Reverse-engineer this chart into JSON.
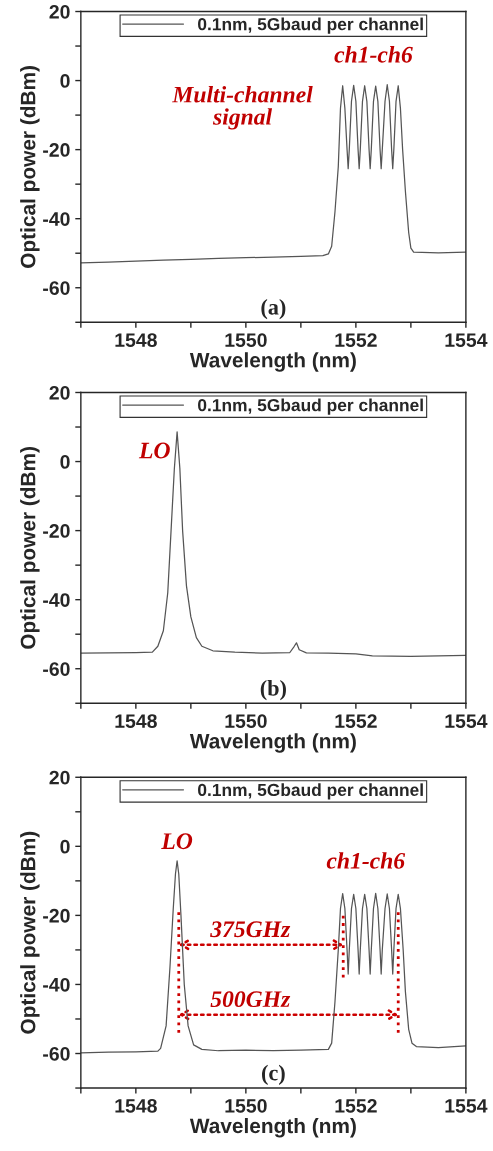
{
  "chart_data": [
    {
      "type": "line",
      "xlabel": "Wavelength (nm)",
      "ylabel": "Optical power (dBm)",
      "xlim": [
        1547,
        1554
      ],
      "ylim": [
        -70,
        20
      ],
      "xticks": [
        {
          "value": 1547,
          "label": null
        },
        1548,
        {
          "value": 1549,
          "label": null
        },
        1550,
        {
          "value": 1551,
          "label": null
        },
        1552,
        {
          "value": 1553,
          "label": null
        },
        1554
      ],
      "yticks": [
        {
          "value": -70,
          "label": null
        },
        -60,
        {
          "value": -50,
          "label": null
        },
        -40,
        {
          "value": -30,
          "label": null
        },
        -20,
        {
          "value": -10,
          "label": null
        },
        0,
        {
          "value": 10,
          "label": null
        },
        20
      ],
      "legend": "top",
      "grid": false,
      "series": [
        {
          "name": "0.1nm, 5Gbaud per channel",
          "color": "#555555",
          "x": [
            1547.0,
            1547.5,
            1548.0,
            1548.5,
            1549.0,
            1549.5,
            1550.0,
            1550.5,
            1551.0,
            1551.4,
            1551.5,
            1551.56,
            1551.62,
            1551.68,
            1551.72,
            1551.76,
            1551.8,
            1551.84,
            1551.86,
            1551.88,
            1551.92,
            1551.96,
            1552.0,
            1552.04,
            1552.06,
            1552.08,
            1552.12,
            1552.16,
            1552.2,
            1552.24,
            1552.26,
            1552.28,
            1552.32,
            1552.36,
            1552.4,
            1552.44,
            1552.46,
            1552.48,
            1552.53,
            1552.57,
            1552.61,
            1552.65,
            1552.67,
            1552.69,
            1552.73,
            1552.77,
            1552.81,
            1552.85,
            1552.9,
            1552.96,
            1553.0,
            1553.05,
            1553.5,
            1554.0
          ],
          "values": [
            -52.8,
            -52.6,
            -52.3,
            -52.0,
            -51.8,
            -51.5,
            -51.3,
            -51.1,
            -50.9,
            -50.7,
            -50.2,
            -48,
            -38,
            -25,
            -8,
            -1.5,
            -8,
            -20,
            -25.5,
            -20,
            -6,
            -1.4,
            -6,
            -20,
            -25.5,
            -20,
            -6,
            -1.5,
            -6,
            -20,
            -25.5,
            -20,
            -6,
            -1.6,
            -6,
            -20,
            -25.5,
            -20,
            -6,
            -1.2,
            -6,
            -20,
            -25.5,
            -20,
            -6,
            -1.5,
            -8,
            -20,
            -32,
            -44,
            -48.5,
            -49.7,
            -49.9,
            -49.7
          ]
        }
      ],
      "annotations": [
        "ch1-ch6",
        "Multi-channel\nsignal",
        "(a)"
      ]
    },
    {
      "type": "line",
      "xlabel": "Wavelength (nm)",
      "ylabel": "Optical power (dBm)",
      "xlim": [
        1547,
        1554
      ],
      "ylim": [
        -70,
        20
      ],
      "xticks": [
        {
          "value": 1547,
          "label": null
        },
        1548,
        {
          "value": 1549,
          "label": null
        },
        1550,
        {
          "value": 1551,
          "label": null
        },
        1552,
        {
          "value": 1553,
          "label": null
        },
        1554
      ],
      "yticks": [
        {
          "value": -70,
          "label": null
        },
        -60,
        {
          "value": -50,
          "label": null
        },
        -40,
        {
          "value": -30,
          "label": null
        },
        -20,
        {
          "value": -10,
          "label": null
        },
        0,
        {
          "value": 10,
          "label": null
        },
        20
      ],
      "legend": "top",
      "grid": false,
      "series": [
        {
          "name": "0.1nm, 5Gbaud per channel",
          "color": "#555555",
          "x": [
            1547.0,
            1547.5,
            1548.0,
            1548.3,
            1548.4,
            1548.5,
            1548.58,
            1548.64,
            1548.7,
            1548.75,
            1548.8,
            1548.85,
            1548.92,
            1549.0,
            1549.1,
            1549.2,
            1549.4,
            1549.8,
            1550.3,
            1550.8,
            1550.88,
            1550.92,
            1550.97,
            1551.1,
            1551.5,
            1552.0,
            1552.3,
            1553.0,
            1554.0
          ],
          "values": [
            -55.5,
            -55.4,
            -55.3,
            -55.2,
            -53.5,
            -49,
            -38,
            -20,
            -2,
            8.6,
            -2,
            -20,
            -36,
            -45,
            -51,
            -53.5,
            -54.8,
            -55.2,
            -55.5,
            -55.3,
            -53.5,
            -52.5,
            -54.5,
            -55.4,
            -55.5,
            -55.7,
            -56.3,
            -56.4,
            -56.1
          ]
        }
      ],
      "annotations": [
        {
          "text": "LO",
          "x": 1548.75,
          "y": 8.6
        },
        "(b)"
      ]
    },
    {
      "type": "line",
      "xlabel": "Wavelength (nm)",
      "ylabel": "Optical power (dBm)",
      "xlim": [
        1547,
        1554
      ],
      "ylim": [
        -70,
        20
      ],
      "xticks": [
        {
          "value": 1547,
          "label": null
        },
        1548,
        {
          "value": 1549,
          "label": null
        },
        1550,
        {
          "value": 1551,
          "label": null
        },
        1552,
        {
          "value": 1553,
          "label": null
        },
        1554
      ],
      "yticks": [
        {
          "value": -70,
          "label": null
        },
        -60,
        {
          "value": -50,
          "label": null
        },
        -40,
        {
          "value": -30,
          "label": null
        },
        -20,
        {
          "value": -10,
          "label": null
        },
        0,
        {
          "value": 10,
          "label": null
        },
        20
      ],
      "legend": "top",
      "grid": false,
      "series": [
        {
          "name": "0.1nm, 5Gbaud per channel",
          "color": "#555555",
          "x": [
            1547.0,
            1547.5,
            1548.0,
            1548.4,
            1548.45,
            1548.55,
            1548.62,
            1548.68,
            1548.72,
            1548.75,
            1548.78,
            1548.82,
            1548.88,
            1548.95,
            1549.05,
            1549.2,
            1549.5,
            1550.0,
            1550.5,
            1551.0,
            1551.5,
            1551.56,
            1551.62,
            1551.68,
            1551.72,
            1551.76,
            1551.8,
            1551.84,
            1551.86,
            1551.88,
            1551.92,
            1551.96,
            1552.0,
            1552.04,
            1552.06,
            1552.08,
            1552.12,
            1552.16,
            1552.2,
            1552.24,
            1552.26,
            1552.28,
            1552.32,
            1552.36,
            1552.4,
            1552.44,
            1552.46,
            1552.48,
            1552.53,
            1552.57,
            1552.61,
            1552.65,
            1552.67,
            1552.69,
            1552.73,
            1552.77,
            1552.81,
            1552.86,
            1552.9,
            1552.96,
            1553.02,
            1553.1,
            1553.5,
            1554.0
          ],
          "values": [
            -59.8,
            -59.6,
            -59.5,
            -59.3,
            -58.5,
            -52,
            -35,
            -18,
            -8,
            -4.2,
            -8,
            -20,
            -40,
            -52,
            -57.5,
            -58.8,
            -59.2,
            -59.0,
            -59.2,
            -59.0,
            -58.8,
            -57,
            -45,
            -30,
            -18,
            -13.7,
            -18,
            -30,
            -37,
            -30,
            -18,
            -13.9,
            -18,
            -30,
            -37,
            -30,
            -18,
            -13.9,
            -18,
            -30,
            -37,
            -30,
            -18,
            -13.6,
            -18,
            -30,
            -37,
            -30,
            -18,
            -13.8,
            -18,
            -30,
            -37,
            -30,
            -18,
            -13.9,
            -18,
            -30,
            -42,
            -53,
            -57,
            -58,
            -58.3,
            -57.8
          ]
        }
      ],
      "ref_lines": [
        {
          "axis": "x",
          "value": 1548.78,
          "color": "#cc0000",
          "line_style": "dotted"
        },
        {
          "axis": "x",
          "value": 1551.77,
          "color": "#cc0000",
          "line_style": "dotted"
        },
        {
          "axis": "x",
          "value": 1552.77,
          "color": "#cc0000",
          "line_style": "dotted"
        }
      ],
      "annotations": [
        {
          "text": "LO",
          "x": 1548.75,
          "y": -4.2
        },
        "ch1-ch6",
        "375GHz",
        "500GHz",
        "(c)"
      ]
    }
  ]
}
